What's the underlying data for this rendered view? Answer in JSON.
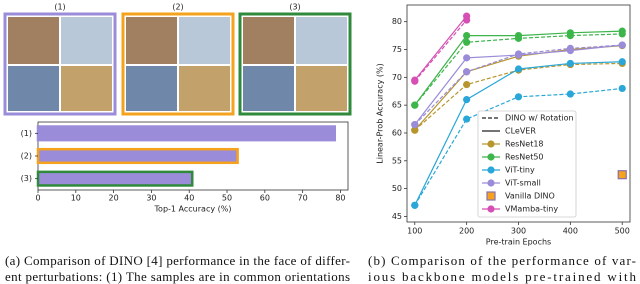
{
  "panels": [
    "(1)",
    "(2)",
    "(3)"
  ],
  "chart_data": [
    {
      "type": "bar",
      "orientation": "horizontal",
      "categories": [
        "(1)",
        "(2)",
        "(3)"
      ],
      "values": [
        78.5,
        52.8,
        40.8
      ],
      "colors": [
        "#9a8cd8",
        "#9a8cd8",
        "#9a8cd8"
      ],
      "edgecolors": [
        "#9a8cd8",
        "#f5a21c",
        "#2f8a3c"
      ],
      "xlabel": "Top-1 Accuracy (%)",
      "xlim": [
        0,
        82
      ],
      "xticks": [
        0,
        10,
        20,
        30,
        40,
        50,
        60,
        70,
        80
      ]
    },
    {
      "type": "line",
      "xlabel": "Pre-train Epochs",
      "ylabel": "Linear-Prob Accuracy (%)",
      "x": [
        100,
        200,
        300,
        400,
        500
      ],
      "xlim": [
        85,
        515
      ],
      "xticks": [
        100,
        200,
        300,
        400,
        500
      ],
      "ylim": [
        44,
        83
      ],
      "yticks": [
        45,
        50,
        55,
        60,
        65,
        70,
        75,
        80
      ],
      "legend_styles": [
        {
          "name": "DINO w/ Rotation",
          "dash": "dashed"
        },
        {
          "name": "CLeVER",
          "dash": "solid"
        }
      ],
      "series": [
        {
          "name": "ResNet18",
          "color": "#b8962e",
          "rotation": [
            60.5,
            68.7,
            71.3,
            72.3,
            72.5
          ],
          "clever": [
            60.5,
            71,
            73.8,
            75,
            75.7
          ]
        },
        {
          "name": "ResNet50",
          "color": "#3cb54a",
          "rotation": [
            65,
            76.3,
            77,
            77.5,
            77.8
          ],
          "clever": [
            65,
            77.5,
            77.5,
            78,
            78.3
          ]
        },
        {
          "name": "ViT-tiny",
          "color": "#2aa7d8",
          "rotation": [
            47,
            62.5,
            66.5,
            67,
            68
          ],
          "clever": [
            47,
            66,
            71.5,
            72.5,
            72.8
          ]
        },
        {
          "name": "ViT-small",
          "color": "#9a8cd8",
          "rotation": [
            61.5,
            71,
            74.2,
            75.2,
            75.8
          ],
          "clever": [
            61.5,
            73.5,
            74,
            74.8,
            75.8
          ]
        },
        {
          "name": "Vanilla DINO",
          "color": "#f5a21c",
          "marker": "square",
          "values": [
            null,
            null,
            null,
            null,
            52.5
          ]
        },
        {
          "name": "VMamba-tiny",
          "color": "#d54fb4",
          "rotation": [
            69.3,
            80.3,
            null,
            null,
            null
          ],
          "clever": [
            69.5,
            81,
            null,
            null,
            null
          ]
        }
      ]
    }
  ],
  "captions": [
    [
      "(a)  Comparison of DINO [4] performance in the face of differ-",
      "ent perturbations: (1) The samples are in common orientations"
    ],
    [
      "(b)  Comparison of the performance of var-",
      "ious backbone models pre-trained with"
    ]
  ]
}
